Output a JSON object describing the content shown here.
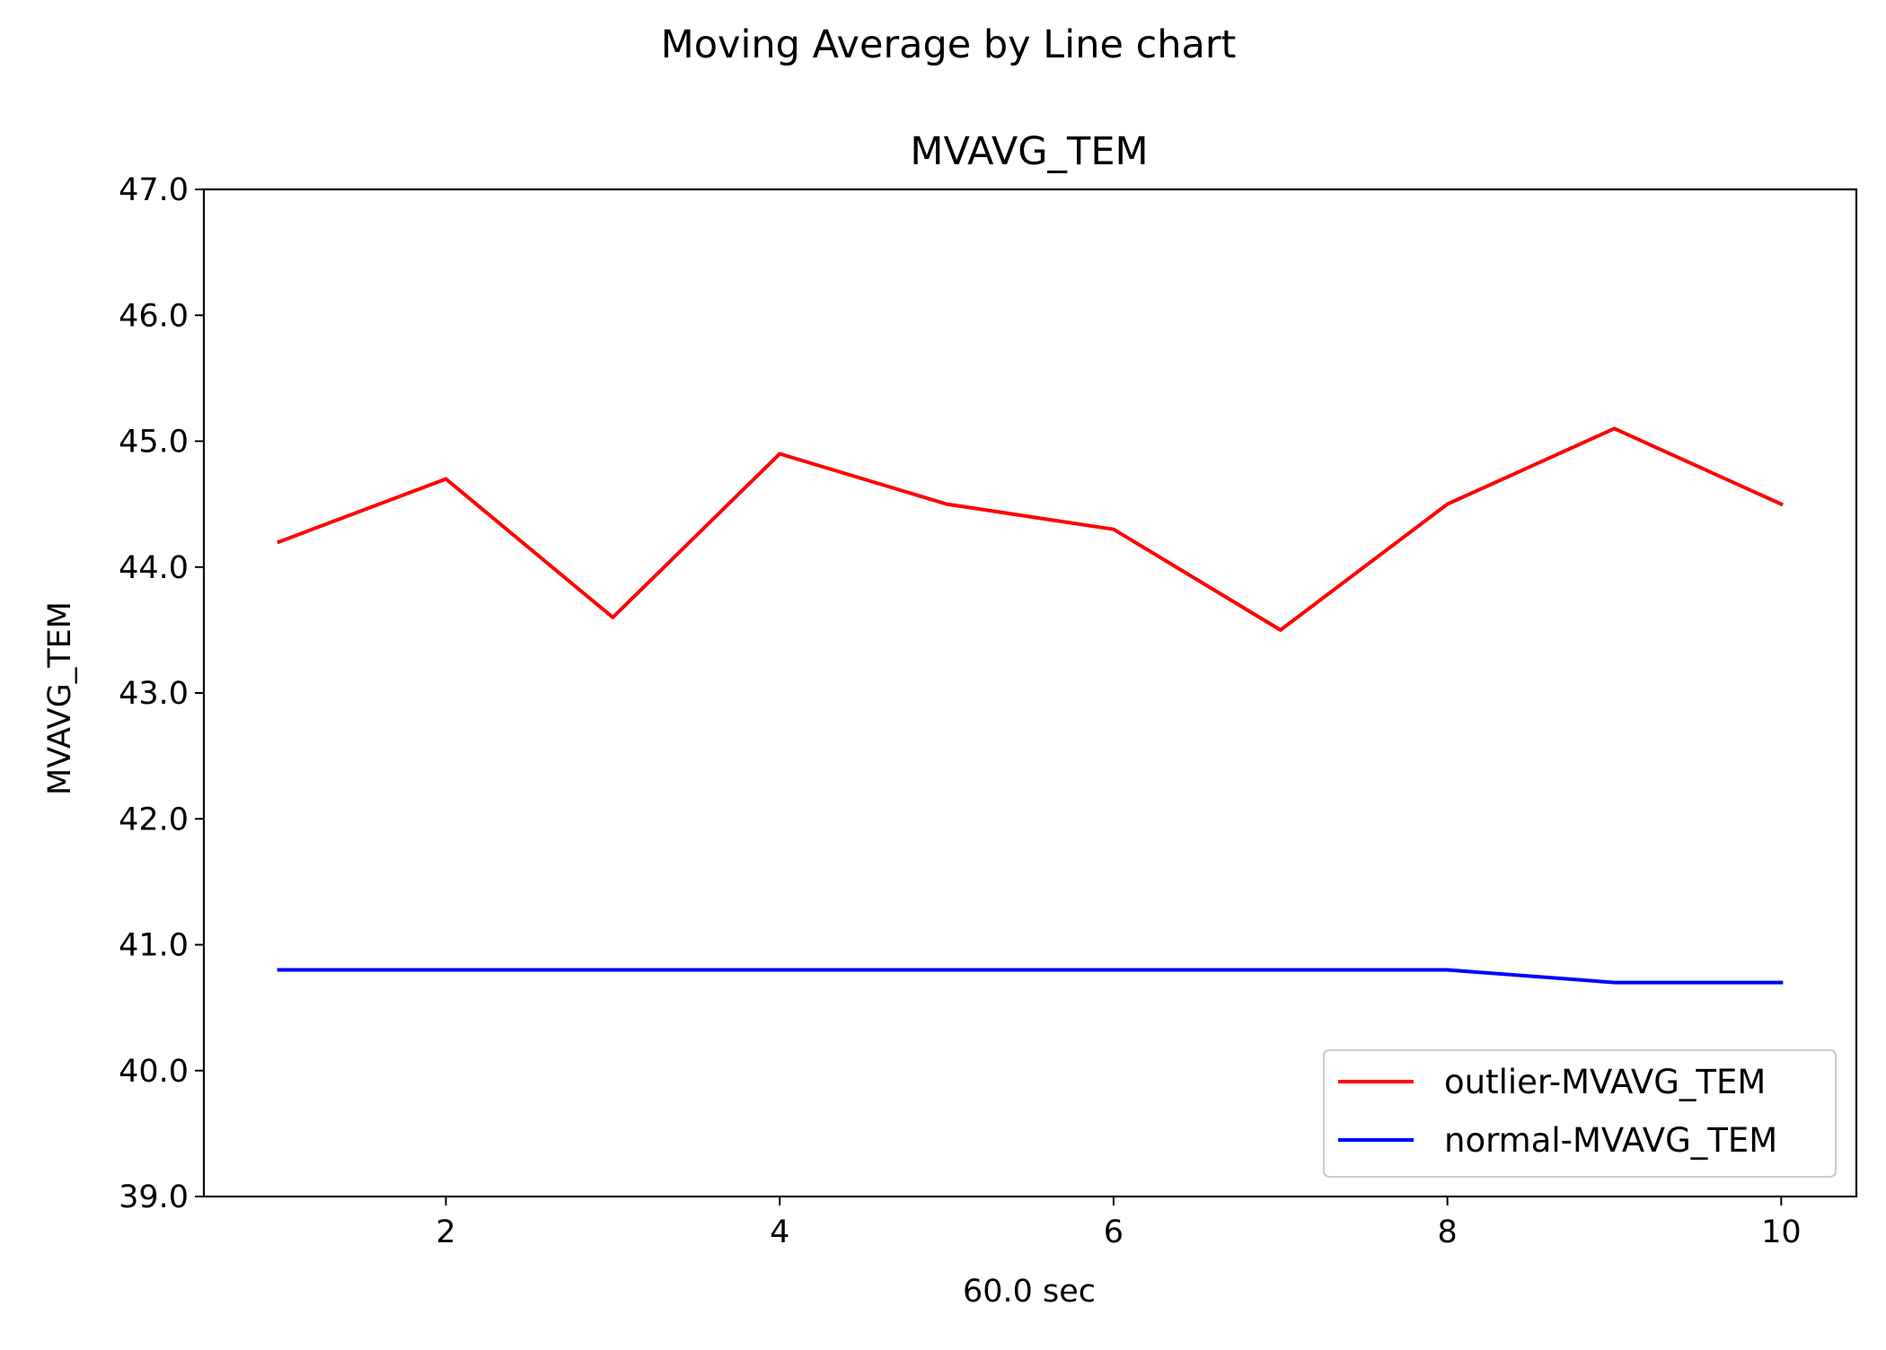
{
  "chart_data": {
    "type": "line",
    "suptitle": "Moving Average by Line chart",
    "title": "MVAVG_TEM",
    "xlabel": "60.0 sec",
    "ylabel": "MVAVG_TEM",
    "x": [
      1,
      2,
      3,
      4,
      5,
      6,
      7,
      8,
      9,
      10
    ],
    "xlim": [
      0.55,
      10.45
    ],
    "ylim": [
      39.0,
      47.0
    ],
    "xticks": [
      2,
      4,
      6,
      8,
      10
    ],
    "xtick_labels": [
      "2",
      "4",
      "6",
      "8",
      "10"
    ],
    "yticks": [
      39.0,
      40.0,
      41.0,
      42.0,
      43.0,
      44.0,
      45.0,
      46.0,
      47.0
    ],
    "ytick_labels": [
      "39.0",
      "40.0",
      "41.0",
      "42.0",
      "43.0",
      "44.0",
      "45.0",
      "46.0",
      "47.0"
    ],
    "grid": false,
    "legend_position": "lower right",
    "series": [
      {
        "name": "outlier-MVAVG_TEM",
        "color": "#ff0000",
        "values": [
          44.2,
          44.7,
          43.6,
          44.9,
          44.5,
          44.3,
          43.5,
          44.5,
          45.1,
          44.5
        ]
      },
      {
        "name": "normal-MVAVG_TEM",
        "color": "#0000ff",
        "values": [
          40.8,
          40.8,
          40.8,
          40.8,
          40.8,
          40.8,
          40.8,
          40.8,
          40.7,
          40.7
        ]
      }
    ]
  }
}
